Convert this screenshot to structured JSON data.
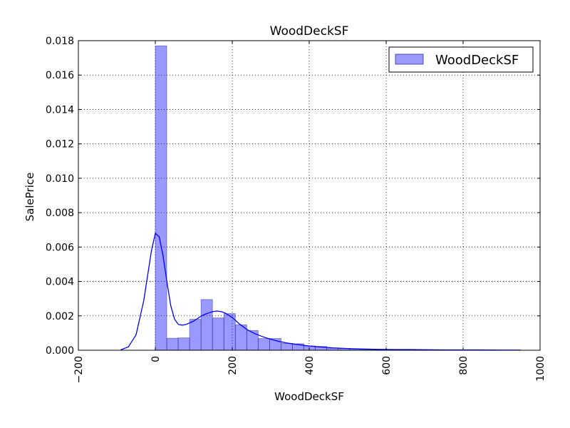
{
  "chart_data": {
    "type": "bar",
    "title": "WoodDeckSF",
    "xlabel": "WoodDeckSF",
    "ylabel": "SalePrice",
    "xlim": [
      -200,
      1000
    ],
    "ylim": [
      0,
      0.018
    ],
    "x_ticks": [
      "−200",
      "0",
      "200",
      "400",
      "600",
      "800",
      "1000"
    ],
    "x_tick_values": [
      -200,
      0,
      200,
      400,
      600,
      800,
      1000
    ],
    "y_ticks": [
      "0.000",
      "0.002",
      "0.004",
      "0.006",
      "0.008",
      "0.010",
      "0.012",
      "0.014",
      "0.016",
      "0.018"
    ],
    "y_tick_values": [
      0,
      0.002,
      0.004,
      0.006,
      0.008,
      0.01,
      0.012,
      0.014,
      0.016,
      0.018
    ],
    "grid": true,
    "legend_position": "top-right",
    "series": [
      {
        "name": "WoodDeckSF",
        "kind": "histogram",
        "color": "#0000ff",
        "bin_width": 29.7,
        "bin_starts": [
          0,
          29.7,
          59.4,
          89.1,
          118.8,
          148.5,
          178.2,
          207.9,
          237.6,
          267.3,
          297.0,
          326.7,
          356.4,
          386.1,
          415.8,
          445.5,
          475.2,
          504.9,
          534.6,
          564.3,
          594.0,
          623.7,
          653.4,
          683.1,
          712.8,
          742.5,
          772.2,
          801.9,
          831.6,
          861.3
        ],
        "values": [
          0.0177,
          0.0007,
          0.00072,
          0.0018,
          0.00295,
          0.00188,
          0.00213,
          0.00148,
          0.00115,
          0.00068,
          0.00068,
          0.0004,
          0.00038,
          0.00025,
          0.00022,
          0.00012,
          0.0001,
          8e-05,
          5e-05,
          3e-05,
          2e-05,
          1e-05,
          3e-05,
          1e-05,
          1e-05,
          1e-05,
          0.0,
          1e-05,
          0.0,
          1e-05
        ]
      },
      {
        "kind": "kde",
        "color": "#0000ff",
        "x": [
          -90,
          -70,
          -50,
          -30,
          -10,
          0,
          10,
          20,
          30,
          40,
          50,
          60,
          70,
          80,
          90,
          100,
          110,
          120,
          130,
          140,
          150,
          160,
          170,
          180,
          190,
          200,
          220,
          240,
          260,
          280,
          300,
          320,
          340,
          360,
          380,
          400,
          430,
          460,
          500,
          540,
          580,
          620,
          660,
          700,
          750,
          800,
          850,
          900,
          950
        ],
        "y": [
          2e-05,
          0.0002,
          0.0009,
          0.0029,
          0.0058,
          0.0068,
          0.0066,
          0.0055,
          0.004,
          0.0026,
          0.0018,
          0.0015,
          0.00146,
          0.0015,
          0.0016,
          0.0017,
          0.00185,
          0.002,
          0.0021,
          0.00218,
          0.00225,
          0.00228,
          0.00225,
          0.00218,
          0.00205,
          0.0019,
          0.0015,
          0.00118,
          0.00095,
          0.00078,
          0.00064,
          0.00052,
          0.00043,
          0.00036,
          0.0003,
          0.00025,
          0.00019,
          0.00014,
          0.0001,
          7e-05,
          5e-05,
          4e-05,
          4e-05,
          3e-05,
          2e-05,
          2e-05,
          2e-05,
          1e-05,
          1e-05
        ]
      }
    ]
  }
}
